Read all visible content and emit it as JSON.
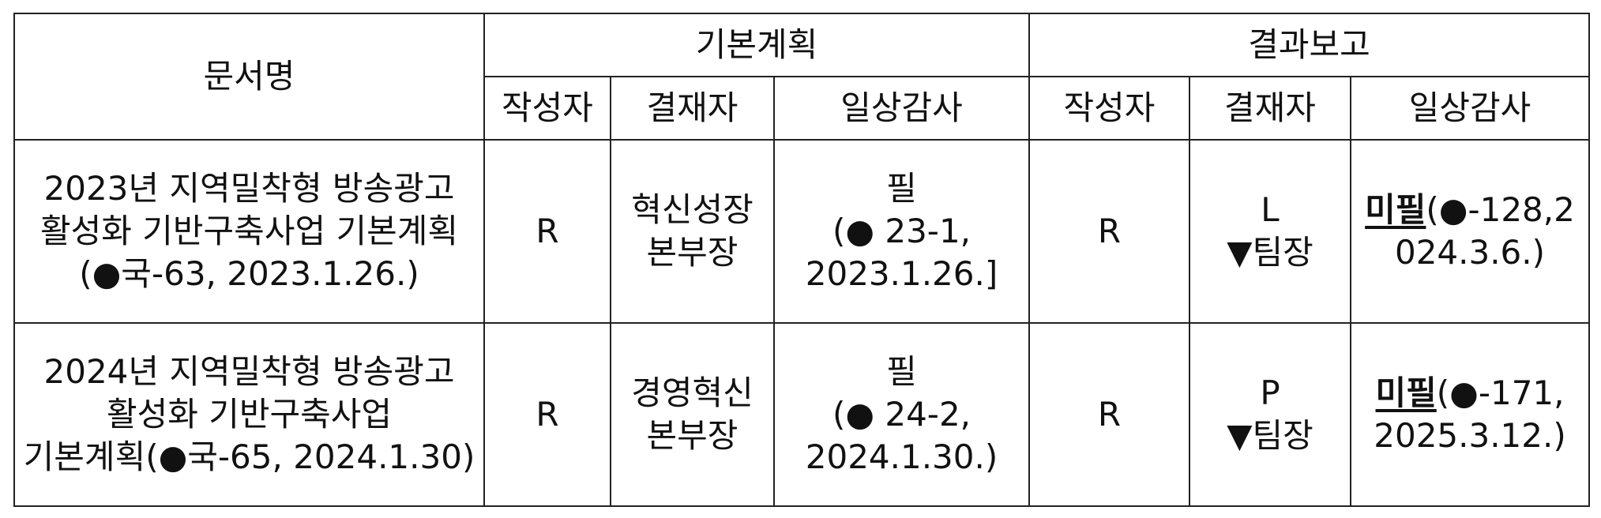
{
  "header": {
    "doc_name": "문서명",
    "plan_group": "기본계획",
    "report_group": "결과보고",
    "plan_cols": [
      "작성자",
      "결재자",
      "일상감사"
    ],
    "report_cols": [
      "작성자",
      "결재자",
      "일상감사"
    ]
  },
  "rows": [
    {
      "doc_name": [
        "2023년 지역밀착형 방송광고",
        "활성화 기반구축사업 기본계획",
        "(●국-63, 2023.1.26.)"
      ],
      "plan_author": "R",
      "plan_approver": [
        "혁신성장",
        "본부장"
      ],
      "plan_audit": [
        "필",
        "(● 23-1,",
        "2023.1.26.]"
      ],
      "report_author": "R",
      "report_approver": [
        "L",
        "▼팀장"
      ],
      "report_audit_mark": "미필",
      "report_audit": [
        "(●-128,2",
        "024.3.6.)"
      ]
    },
    {
      "doc_name": [
        "2024년 지역밀착형 방송광고",
        "활성화 기반구축사업",
        "기본계획(●국-65, 2024.1.30)"
      ],
      "plan_author": "R",
      "plan_approver": [
        "경영혁신",
        "본부장"
      ],
      "plan_audit": [
        "필",
        "(● 24-2,",
        "2024.1.30.)"
      ],
      "report_author": "R",
      "report_approver": [
        "P",
        "▼팀장"
      ],
      "report_audit_mark": "미필",
      "report_audit": [
        "(●-171,",
        "2025.3.12.)"
      ]
    }
  ]
}
